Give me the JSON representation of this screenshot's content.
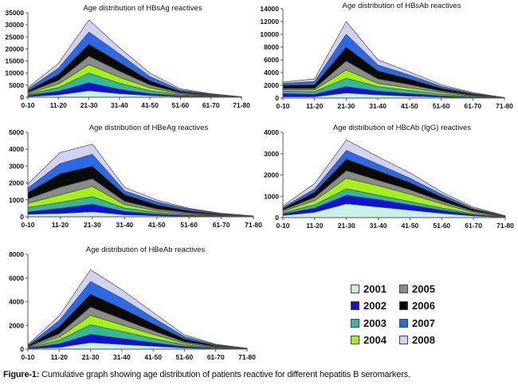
{
  "colors": {
    "2001": "#c9f2e6",
    "2002": "#1010d8",
    "2003": "#34b89a",
    "2004": "#a6f01a",
    "2005": "#8a8c8a",
    "2006": "#0a0a0a",
    "2007": "#2a6ae8",
    "2008": "#d2d2f2",
    "outline": "#555555"
  },
  "legend": {
    "items": [
      {
        "label": "2001",
        "key": "2001"
      },
      {
        "label": "2002",
        "key": "2002"
      },
      {
        "label": "2003",
        "key": "2003"
      },
      {
        "label": "2004",
        "key": "2004"
      },
      {
        "label": "2005",
        "key": "2005"
      },
      {
        "label": "2006",
        "key": "2006"
      },
      {
        "label": "2007",
        "key": "2007"
      },
      {
        "label": "2008",
        "key": "2008"
      }
    ]
  },
  "caption": {
    "label": "Figure-1:",
    "text": " Cumulative graph showing age distribution of patients reactive for different hepatitis B seromarkers."
  },
  "chart_data": [
    {
      "id": "hbsag",
      "type": "area",
      "stacked": true,
      "title": "Age distribution of HBsAg reactives",
      "categories": [
        "0-10",
        "11-20",
        "21-30",
        "31-40",
        "41-50",
        "51-60",
        "61-70",
        "71-80"
      ],
      "ylim": [
        0,
        35000
      ],
      "yticks": [
        0,
        5000,
        10000,
        15000,
        20000,
        25000,
        30000,
        35000
      ],
      "xlabel": "",
      "ylabel": "",
      "grid": false,
      "series": [
        {
          "name": "2001",
          "values": [
            300,
            1000,
            2700,
            1500,
            700,
            300,
            100,
            20
          ]
        },
        {
          "name": "2002",
          "values": [
            500,
            1500,
            3300,
            1800,
            800,
            300,
            150,
            20
          ]
        },
        {
          "name": "2003",
          "values": [
            400,
            1500,
            4000,
            2500,
            1200,
            400,
            150,
            20
          ]
        },
        {
          "name": "2004",
          "values": [
            400,
            1500,
            3500,
            2500,
            1200,
            400,
            200,
            20
          ]
        },
        {
          "name": "2005",
          "values": [
            400,
            1500,
            3500,
            2500,
            1200,
            400,
            200,
            30
          ]
        },
        {
          "name": "2006",
          "values": [
            700,
            2500,
            5000,
            3700,
            1800,
            600,
            300,
            40
          ]
        },
        {
          "name": "2007",
          "values": [
            700,
            2500,
            5000,
            3500,
            1700,
            600,
            250,
            30
          ]
        },
        {
          "name": "2008",
          "values": [
            600,
            2000,
            5000,
            2500,
            1400,
            500,
            150,
            20
          ]
        }
      ]
    },
    {
      "id": "hbsab",
      "type": "area",
      "stacked": true,
      "title": "Age distribution of HBsAb reactives",
      "categories": [
        "0-10",
        "11-20",
        "21-30",
        "31-40",
        "41-50",
        "51-60",
        "61-70",
        "71-80"
      ],
      "ylim": [
        0,
        14000
      ],
      "yticks": [
        0,
        2000,
        4000,
        6000,
        8000,
        10000,
        12000,
        14000
      ],
      "xlabel": "",
      "ylabel": "",
      "grid": false,
      "series": [
        {
          "name": "2001",
          "values": [
            200,
            200,
            800,
            500,
            300,
            150,
            50,
            10
          ]
        },
        {
          "name": "2002",
          "values": [
            500,
            400,
            1000,
            600,
            400,
            200,
            80,
            10
          ]
        },
        {
          "name": "2003",
          "values": [
            400,
            400,
            1300,
            700,
            500,
            250,
            100,
            10
          ]
        },
        {
          "name": "2004",
          "values": [
            200,
            300,
            1300,
            500,
            400,
            250,
            100,
            10
          ]
        },
        {
          "name": "2005",
          "values": [
            200,
            200,
            1400,
            700,
            500,
            250,
            100,
            10
          ]
        },
        {
          "name": "2006",
          "values": [
            500,
            600,
            2200,
            1300,
            900,
            450,
            200,
            20
          ]
        },
        {
          "name": "2007",
          "values": [
            300,
            500,
            2000,
            900,
            600,
            300,
            120,
            10
          ]
        },
        {
          "name": "2008",
          "values": [
            200,
            400,
            2000,
            800,
            500,
            250,
            100,
            10
          ]
        }
      ]
    },
    {
      "id": "hbeag",
      "type": "area",
      "stacked": true,
      "title": "Age distribution of HBeAg reactives",
      "categories": [
        "0-10",
        "11-20",
        "21-30",
        "31-40",
        "41-50",
        "51-60",
        "61-70",
        "71-80"
      ],
      "ylim": [
        0,
        5000
      ],
      "yticks": [
        0,
        1000,
        2000,
        3000,
        4000,
        5000
      ],
      "xlabel": "",
      "ylabel": "",
      "grid": false,
      "series": [
        {
          "name": "2001",
          "values": [
            150,
            200,
            300,
            120,
            60,
            30,
            15,
            5
          ]
        },
        {
          "name": "2002",
          "values": [
            150,
            300,
            450,
            200,
            100,
            50,
            20,
            5
          ]
        },
        {
          "name": "2003",
          "values": [
            250,
            350,
            450,
            200,
            100,
            50,
            20,
            5
          ]
        },
        {
          "name": "2004",
          "values": [
            250,
            450,
            600,
            200,
            100,
            50,
            20,
            5
          ]
        },
        {
          "name": "2005",
          "values": [
            250,
            450,
            450,
            200,
            100,
            60,
            25,
            5
          ]
        },
        {
          "name": "2006",
          "values": [
            400,
            800,
            750,
            400,
            250,
            120,
            50,
            10
          ]
        },
        {
          "name": "2007",
          "values": [
            250,
            600,
            700,
            220,
            180,
            100,
            40,
            10
          ]
        },
        {
          "name": "2008",
          "values": [
            250,
            650,
            600,
            200,
            110,
            40,
            20,
            5
          ]
        }
      ]
    },
    {
      "id": "hbcab",
      "type": "area",
      "stacked": true,
      "title": "Age distribution of HBcAb (IgG) reactives",
      "categories": [
        "0-10",
        "11-20",
        "21-30",
        "31-40",
        "41-50",
        "51-60",
        "61-70",
        "71-80"
      ],
      "ylim": [
        0,
        4000
      ],
      "yticks": [
        0,
        1000,
        2000,
        3000,
        4000
      ],
      "xlabel": "",
      "ylabel": "",
      "grid": false,
      "series": [
        {
          "name": "2001",
          "values": [
            100,
            250,
            650,
            500,
            350,
            200,
            80,
            10
          ]
        },
        {
          "name": "2002",
          "values": [
            80,
            200,
            400,
            350,
            250,
            150,
            60,
            10
          ]
        },
        {
          "name": "2003",
          "values": [
            50,
            150,
            300,
            200,
            150,
            100,
            40,
            10
          ]
        },
        {
          "name": "2004",
          "values": [
            70,
            200,
            500,
            450,
            350,
            200,
            70,
            10
          ]
        },
        {
          "name": "2005",
          "values": [
            50,
            150,
            350,
            250,
            200,
            120,
            50,
            10
          ]
        },
        {
          "name": "2006",
          "values": [
            80,
            250,
            550,
            450,
            350,
            200,
            80,
            20
          ]
        },
        {
          "name": "2007",
          "values": [
            50,
            150,
            400,
            300,
            200,
            120,
            50,
            10
          ]
        },
        {
          "name": "2008",
          "values": [
            70,
            250,
            500,
            350,
            250,
            110,
            60,
            10
          ]
        }
      ]
    },
    {
      "id": "hbeab",
      "type": "area",
      "stacked": true,
      "title": "Age distribution of HBeAb reactives",
      "categories": [
        "0-10",
        "11-20",
        "21-30",
        "31-40",
        "41-50",
        "51-60",
        "61-70",
        "71-80"
      ],
      "ylim": [
        0,
        8000
      ],
      "yticks": [
        0,
        2000,
        4000,
        6000,
        8000
      ],
      "xlabel": "",
      "ylabel": "",
      "grid": false,
      "series": [
        {
          "name": "2001",
          "values": [
            50,
            150,
            550,
            400,
            250,
            100,
            40,
            10
          ]
        },
        {
          "name": "2002",
          "values": [
            50,
            300,
            700,
            500,
            300,
            130,
            50,
            10
          ]
        },
        {
          "name": "2003",
          "values": [
            50,
            300,
            800,
            600,
            350,
            130,
            50,
            10
          ]
        },
        {
          "name": "2004",
          "values": [
            30,
            250,
            800,
            550,
            350,
            130,
            50,
            10
          ]
        },
        {
          "name": "2005",
          "values": [
            30,
            300,
            700,
            500,
            300,
            120,
            40,
            10
          ]
        },
        {
          "name": "2006",
          "values": [
            70,
            600,
            1100,
            900,
            600,
            250,
            80,
            15
          ]
        },
        {
          "name": "2007",
          "values": [
            50,
            500,
            1050,
            850,
            500,
            200,
            60,
            10
          ]
        },
        {
          "name": "2008",
          "values": [
            50,
            400,
            1000,
            700,
            450,
            150,
            50,
            5
          ]
        }
      ]
    }
  ]
}
